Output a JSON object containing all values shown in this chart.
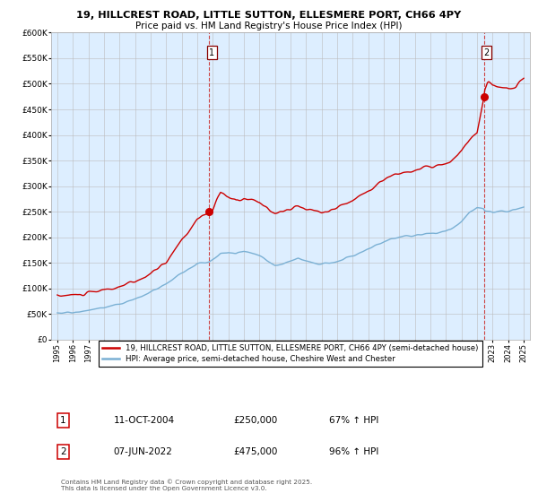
{
  "title1": "19, HILLCREST ROAD, LITTLE SUTTON, ELLESMERE PORT, CH66 4PY",
  "title2": "Price paid vs. HM Land Registry's House Price Index (HPI)",
  "ylabel_ticks": [
    "£0",
    "£50K",
    "£100K",
    "£150K",
    "£200K",
    "£250K",
    "£300K",
    "£350K",
    "£400K",
    "£450K",
    "£500K",
    "£550K",
    "£600K"
  ],
  "ytick_values": [
    0,
    50000,
    100000,
    150000,
    200000,
    250000,
    300000,
    350000,
    400000,
    450000,
    500000,
    550000,
    600000
  ],
  "point1_x": 2004.78,
  "point1_y": 250000,
  "point2_x": 2022.44,
  "point2_y": 475000,
  "dashed1_x": 2004.78,
  "dashed2_x": 2022.44,
  "red_color": "#cc0000",
  "blue_color": "#7ab0d4",
  "chart_bg": "#ddeeff",
  "point_color": "#cc0000",
  "legend_red": "19, HILLCREST ROAD, LITTLE SUTTON, ELLESMERE PORT, CH66 4PY (semi-detached house)",
  "legend_blue": "HPI: Average price, semi-detached house, Cheshire West and Chester",
  "table_data": [
    [
      "1",
      "11-OCT-2004",
      "£250,000",
      "67% ↑ HPI"
    ],
    [
      "2",
      "07-JUN-2022",
      "£475,000",
      "96% ↑ HPI"
    ]
  ],
  "footnote": "Contains HM Land Registry data © Crown copyright and database right 2025.\nThis data is licensed under the Open Government Licence v3.0.",
  "xlim": [
    1994.6,
    2025.4
  ],
  "ylim": [
    0,
    600000
  ],
  "bg_color": "#ffffff",
  "grid_color": "#bbbbbb"
}
